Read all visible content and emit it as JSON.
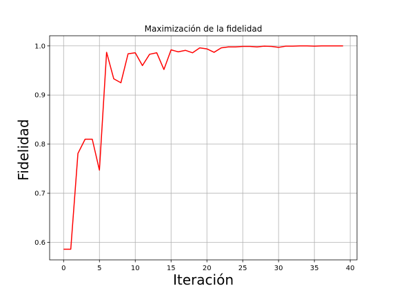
{
  "chart_data": {
    "type": "line",
    "title": "Maximización de la fidelidad",
    "xlabel": "Iteración",
    "ylabel": "Fidelidad",
    "xlim": [
      -1.95,
      40.95
    ],
    "ylim": [
      0.5643,
      1.0207
    ],
    "xticks": [
      0,
      5,
      10,
      15,
      20,
      25,
      30,
      35,
      40
    ],
    "yticks": [
      0.6,
      0.7,
      0.8,
      0.9,
      1.0
    ],
    "grid": true,
    "series": [
      {
        "color": "#ff0000",
        "x": [
          0,
          1,
          2,
          3,
          4,
          5,
          6,
          7,
          8,
          9,
          10,
          11,
          12,
          13,
          14,
          15,
          16,
          17,
          18,
          19,
          20,
          21,
          22,
          23,
          24,
          25,
          26,
          27,
          28,
          29,
          30,
          31,
          32,
          33,
          34,
          35,
          36,
          37,
          38,
          39
        ],
        "values": [
          0.586,
          0.586,
          0.781,
          0.81,
          0.81,
          0.747,
          0.987,
          0.933,
          0.925,
          0.984,
          0.986,
          0.96,
          0.983,
          0.986,
          0.952,
          0.992,
          0.988,
          0.991,
          0.986,
          0.996,
          0.994,
          0.987,
          0.996,
          0.998,
          0.998,
          0.999,
          0.999,
          0.998,
          0.9995,
          0.999,
          0.997,
          0.9995,
          0.9995,
          1.0,
          1.0,
          0.9995,
          1.0,
          1.0,
          1.0,
          1.0
        ]
      }
    ]
  }
}
